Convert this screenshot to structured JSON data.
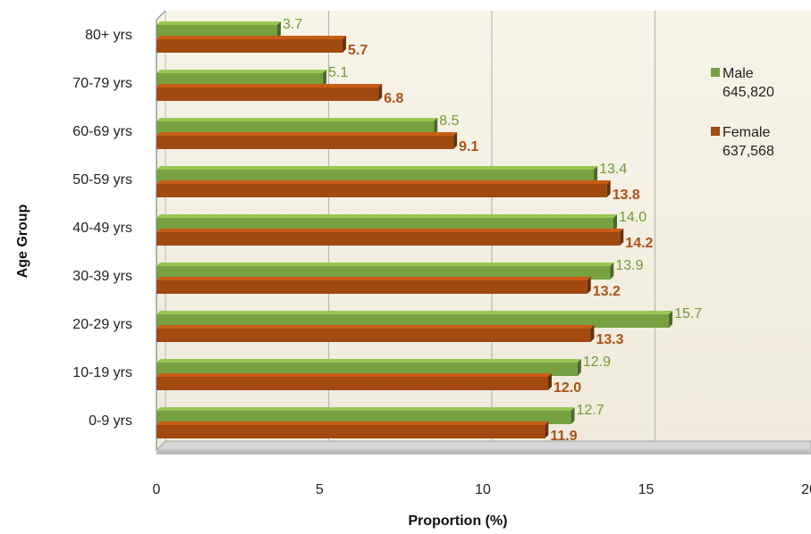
{
  "chart_data": {
    "type": "bar",
    "orientation": "horizontal",
    "categories": [
      "0-9 yrs",
      "10-19 yrs",
      "20-29 yrs",
      "30-39 yrs",
      "40-49 yrs",
      "50-59 yrs",
      "60-69 yrs",
      "70-79 yrs",
      "80+ yrs"
    ],
    "series": [
      {
        "name": "Male",
        "count_label": "645,820",
        "color": "#77a043",
        "values": [
          12.7,
          12.9,
          15.7,
          13.9,
          14.0,
          13.4,
          8.5,
          5.1,
          3.7
        ]
      },
      {
        "name": "Female",
        "count_label": "637,568",
        "color": "#a04a12",
        "values": [
          11.9,
          12.0,
          13.3,
          13.2,
          14.2,
          13.8,
          9.1,
          6.8,
          5.7
        ]
      }
    ],
    "xlabel": "Proportion (%)",
    "ylabel": "Age Group",
    "xlim": [
      0,
      20
    ],
    "xticks": [
      "0",
      "5",
      "10",
      "15",
      "20"
    ],
    "grid": true,
    "legend_position": "right"
  }
}
